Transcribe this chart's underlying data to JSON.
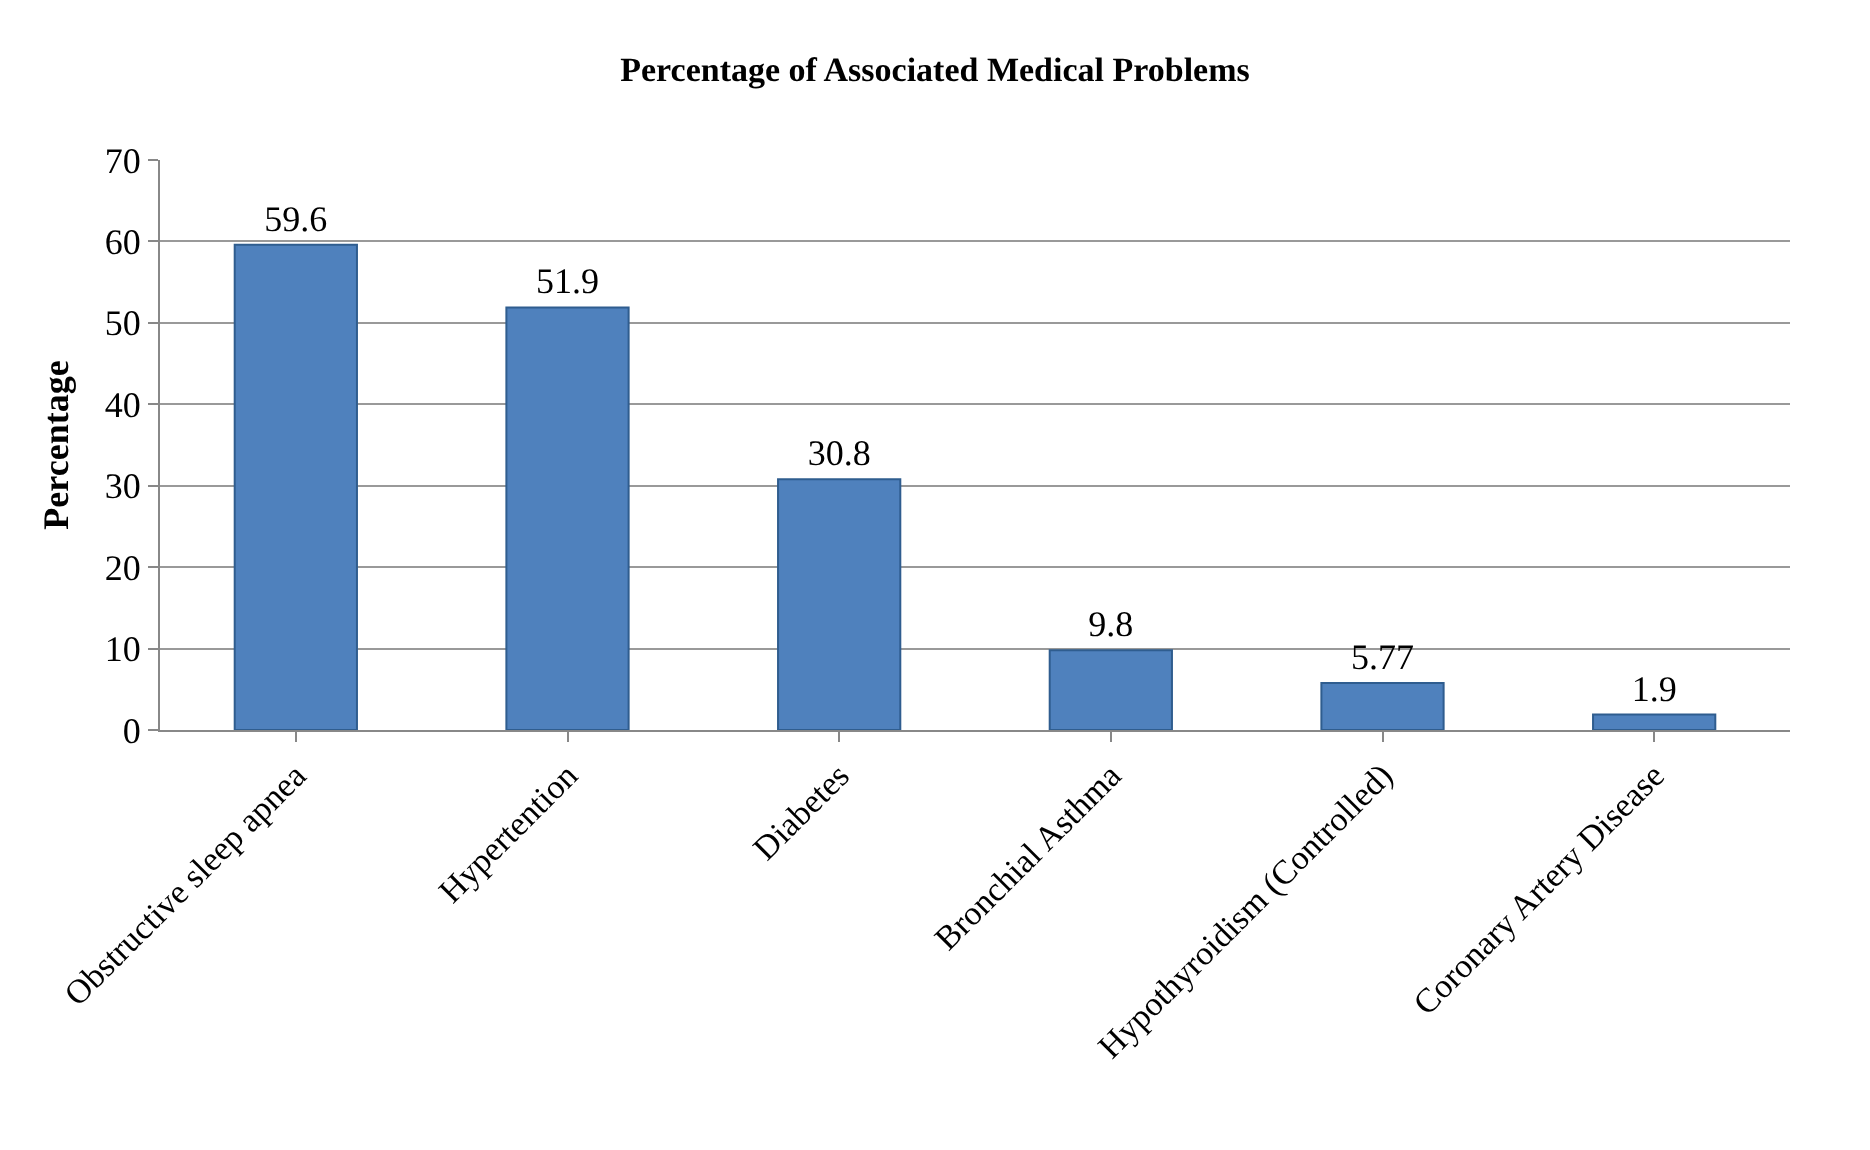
{
  "chart_data": {
    "type": "bar",
    "title": "Percentage of Associated Medical Problems",
    "ylabel": "Percentage",
    "categories": [
      "Obstructive sleep apnea",
      "Hypertention",
      "Diabetes",
      "Bronchial Asthma",
      "Hypothyroidism (Controlled)",
      "Coronary Artery Disease"
    ],
    "values": [
      59.6,
      51.9,
      30.8,
      9.8,
      5.77,
      1.9
    ],
    "color": "#4f81bd",
    "ylim": [
      0,
      70
    ],
    "yticks": [
      0,
      10,
      20,
      30,
      40,
      50,
      60,
      70
    ],
    "grid": "y",
    "data_labels": true
  }
}
